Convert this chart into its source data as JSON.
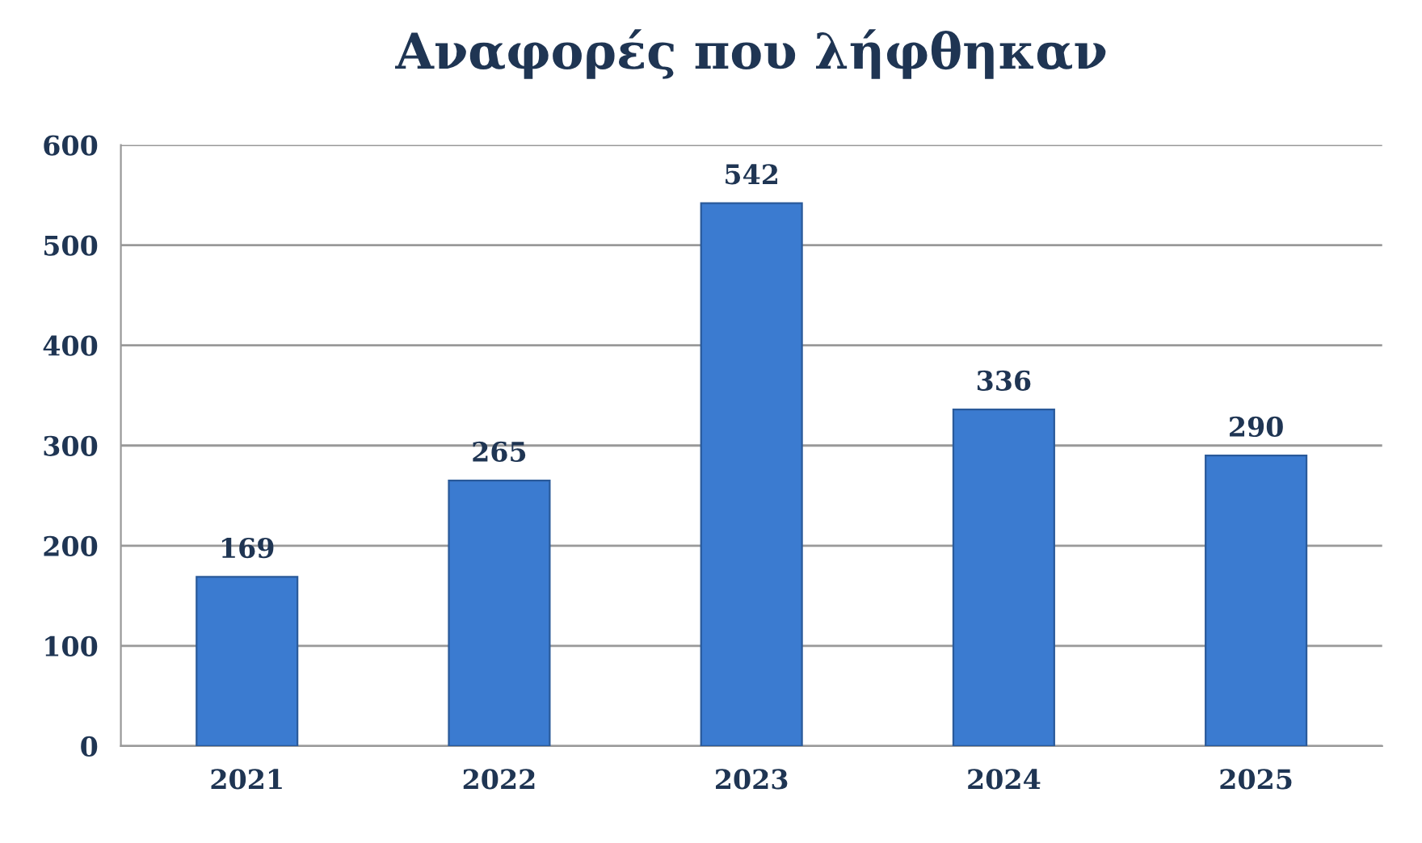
{
  "chart_data": {
    "type": "bar",
    "title": "Αναφορές που λήφθηκαν",
    "categories": [
      "2021",
      "2022",
      "2023",
      "2024",
      "2025"
    ],
    "values": [
      169,
      265,
      542,
      336,
      290
    ],
    "color": "#3b7bd0",
    "ylim": [
      0,
      600
    ],
    "yticks": [
      0,
      100,
      200,
      300,
      400,
      500,
      600
    ],
    "grid": "y",
    "data_labels": true
  }
}
